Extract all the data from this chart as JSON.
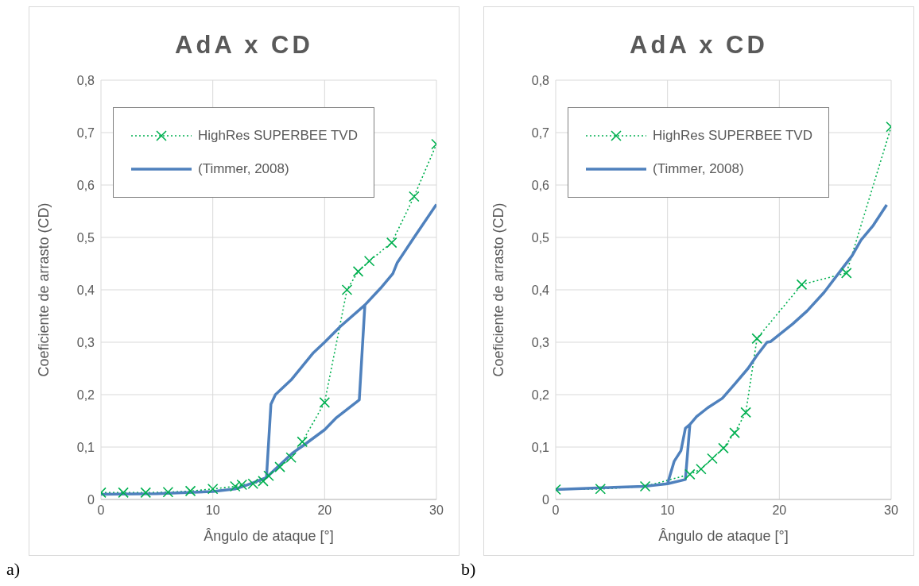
{
  "chart_data": [
    {
      "type": "line",
      "title": "AdA x CD",
      "xlabel": "Ângulo de ataque [°]",
      "ylabel": "Coeficiente de arrasto (CD)",
      "annotations": [
        "a)"
      ],
      "xlim": [
        0,
        30
      ],
      "xticks": [
        0,
        10,
        20,
        30
      ],
      "ylim": [
        0,
        0.8
      ],
      "yticks": [
        {
          "value": 0,
          "label": "0"
        },
        {
          "value": 0.1,
          "label": "0,1"
        },
        {
          "value": 0.2,
          "label": "0,2"
        },
        {
          "value": 0.3,
          "label": "0,3"
        },
        {
          "value": 0.4,
          "label": "0,4"
        },
        {
          "value": 0.5,
          "label": "0,5"
        },
        {
          "value": 0.6,
          "label": "0,6"
        },
        {
          "value": 0.7,
          "label": "0,7"
        },
        {
          "value": 0.8,
          "label": "0,8"
        }
      ],
      "grid": true,
      "legend": "top left",
      "series": [
        {
          "name": "HighRes SUPERBEE TVD",
          "color": "#00b050",
          "marker": "cross",
          "line_style": "dotted",
          "x": [
            0,
            2,
            4,
            6,
            8,
            10,
            12,
            12.6,
            13.6,
            14.5,
            15,
            16,
            17,
            18,
            20,
            22,
            23,
            24,
            26,
            28,
            30
          ],
          "values": [
            0.013,
            0.013,
            0.013,
            0.014,
            0.016,
            0.02,
            0.025,
            0.028,
            0.03,
            0.035,
            0.045,
            0.062,
            0.08,
            0.11,
            0.185,
            0.4,
            0.435,
            0.455,
            0.49,
            0.578,
            0.678
          ]
        },
        {
          "name": "(Timmer, 2008)",
          "color": "#4f81bd",
          "marker": "none",
          "line_style": "solid",
          "x": [
            0,
            5,
            10,
            12,
            13,
            14,
            14.8,
            15.2,
            15.6,
            17,
            19,
            20,
            21.4,
            23.6,
            25,
            26.1,
            26.5,
            28,
            30,
            null,
            14.8,
            17.1,
            18.1,
            20,
            21,
            23.1,
            23.6
          ],
          "values": [
            0.01,
            0.011,
            0.015,
            0.02,
            0.027,
            0.035,
            0.042,
            0.182,
            0.2,
            0.228,
            0.28,
            0.3,
            0.33,
            0.371,
            0.403,
            0.431,
            0.452,
            0.5,
            0.563,
            null,
            0.042,
            0.088,
            0.103,
            0.133,
            0.155,
            0.19,
            0.371
          ]
        }
      ]
    },
    {
      "type": "line",
      "title": "AdA x CD",
      "xlabel": "Ângulo de ataque [°]",
      "ylabel": "Coeficiente de arrasto (CD)",
      "annotations": [
        "b)"
      ],
      "xlim": [
        0,
        30
      ],
      "xticks": [
        0,
        10,
        20,
        30
      ],
      "ylim": [
        0,
        0.8
      ],
      "yticks": [
        {
          "value": 0,
          "label": "0"
        },
        {
          "value": 0.1,
          "label": "0,1"
        },
        {
          "value": 0.2,
          "label": "0,2"
        },
        {
          "value": 0.3,
          "label": "0,3"
        },
        {
          "value": 0.4,
          "label": "0,4"
        },
        {
          "value": 0.5,
          "label": "0,5"
        },
        {
          "value": 0.6,
          "label": "0,6"
        },
        {
          "value": 0.7,
          "label": "0,7"
        },
        {
          "value": 0.8,
          "label": "0,8"
        }
      ],
      "grid": true,
      "legend": "top left",
      "series": [
        {
          "name": "HighRes SUPERBEE TVD",
          "color": "#00b050",
          "marker": "cross",
          "line_style": "dotted",
          "x": [
            0,
            4,
            8,
            12,
            13,
            14,
            15,
            16,
            17,
            18,
            22,
            26,
            30
          ],
          "values": [
            0.019,
            0.02,
            0.025,
            0.048,
            0.058,
            0.078,
            0.098,
            0.127,
            0.166,
            0.307,
            0.41,
            0.432,
            0.711
          ]
        },
        {
          "name": "(Timmer, 2008)",
          "color": "#4f81bd",
          "marker": "none",
          "line_style": "solid",
          "x": [
            0,
            5.2,
            7.9,
            10,
            10.6,
            11.2,
            11.6,
            12,
            12.6,
            13.6,
            14.9,
            16,
            17.2,
            18,
            18.9,
            19.2,
            21.2,
            22.5,
            24,
            25.6,
            26.5,
            27.3,
            28.4,
            29.6,
            null,
            10,
            11.6,
            12
          ],
          "values": [
            0.019,
            0.023,
            0.025,
            0.03,
            0.073,
            0.093,
            0.136,
            0.143,
            0.158,
            0.175,
            0.193,
            0.22,
            0.25,
            0.275,
            0.3,
            0.301,
            0.335,
            0.36,
            0.395,
            0.44,
            0.465,
            0.495,
            0.523,
            0.562,
            null,
            0.03,
            0.038,
            0.143
          ]
        }
      ]
    }
  ]
}
